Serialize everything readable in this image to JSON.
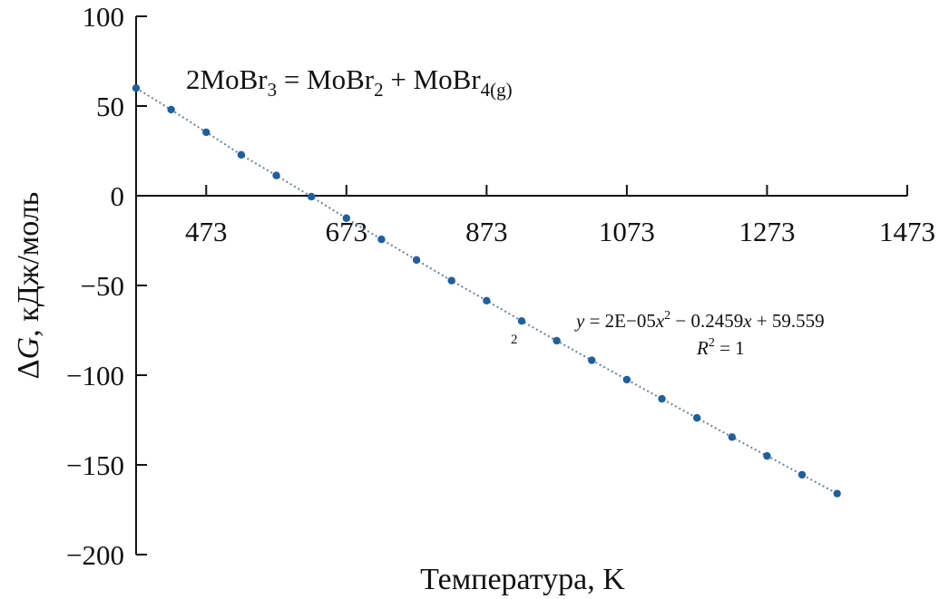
{
  "chart_data": {
    "type": "scatter",
    "title": "",
    "reaction_parts": [
      "2MoBr",
      "3",
      " = MoBr",
      "2",
      " + MoBr",
      "4(g)"
    ],
    "xlabel": "Температура, K",
    "ylabel_parts": [
      "Δ",
      "G",
      ", кДж/моль"
    ],
    "xlim": [
      373,
      1473
    ],
    "ylim": [
      -200,
      100
    ],
    "x_ticks": [
      473,
      673,
      873,
      1073,
      1273,
      1473
    ],
    "y_ticks": [
      100,
      50,
      0,
      -50,
      -100,
      -150,
      -200
    ],
    "y_tick_labels": [
      "100",
      "50",
      "0",
      "−50",
      "−100",
      "−150",
      "−200"
    ],
    "x_axis_crosses_y_at": 0,
    "grid": false,
    "legend": "none",
    "series": [
      {
        "marker_color": "#1f5f9f",
        "trendline": "polynomial-2",
        "trendline_style": "dotted",
        "points": [
          {
            "x": 373,
            "y": 60.0
          },
          {
            "x": 423,
            "y": 48.0
          },
          {
            "x": 473,
            "y": 35.4
          },
          {
            "x": 523,
            "y": 22.8
          },
          {
            "x": 573,
            "y": 11.3
          },
          {
            "x": 623,
            "y": -0.5
          },
          {
            "x": 673,
            "y": -12.5
          },
          {
            "x": 723,
            "y": -24.3
          },
          {
            "x": 773,
            "y": -35.8
          },
          {
            "x": 823,
            "y": -47.3
          },
          {
            "x": 873,
            "y": -58.5
          },
          {
            "x": 923,
            "y": -69.8
          },
          {
            "x": 973,
            "y": -80.8
          },
          {
            "x": 1023,
            "y": -91.7
          },
          {
            "x": 1073,
            "y": -102.5
          },
          {
            "x": 1123,
            "y": -113.2
          },
          {
            "x": 1173,
            "y": -123.8
          },
          {
            "x": 1223,
            "y": -134.5
          },
          {
            "x": 1273,
            "y": -145.0
          },
          {
            "x": 1323,
            "y": -155.5
          },
          {
            "x": 1373,
            "y": -166.0
          }
        ]
      }
    ],
    "annotations": {
      "fit_equation_parts": [
        "y",
        " = 2E−05",
        "x",
        "2",
        " − 0.2459",
        "x",
        " + 59.559"
      ],
      "r_squared_parts": [
        "R",
        "2",
        " = 1"
      ],
      "stray_mark": "2"
    }
  }
}
